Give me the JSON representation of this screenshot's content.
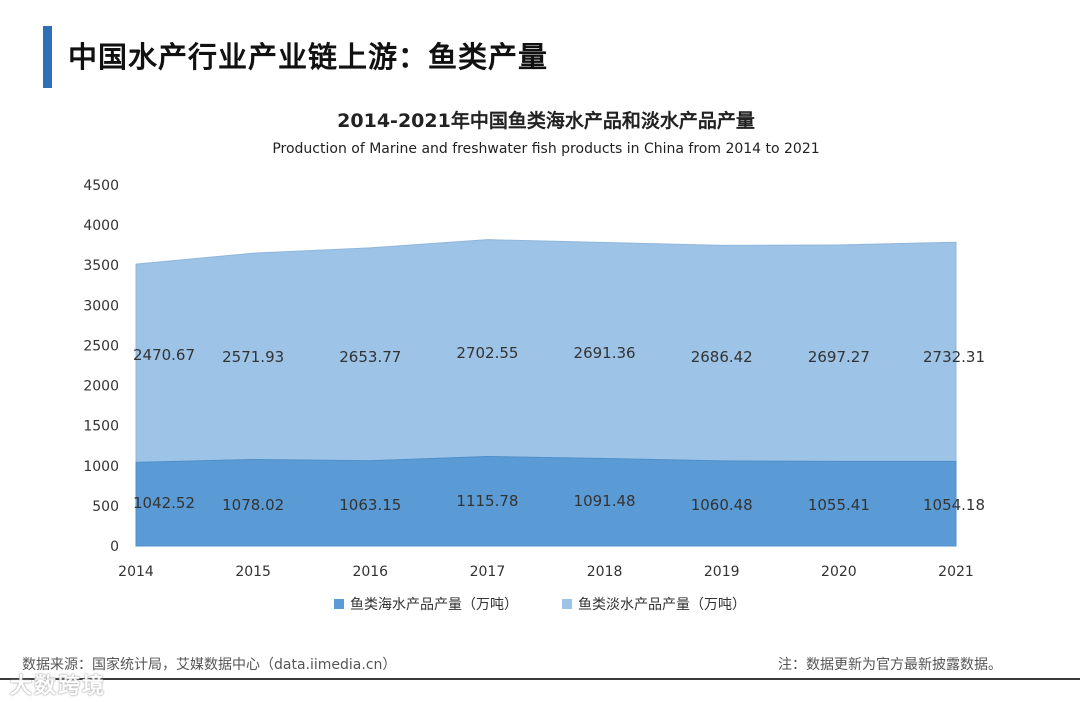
{
  "page": {
    "title": "中国水产行业产业链上游：鱼类产量",
    "source": "数据来源：国家统计局，艾媒数据中心（data.iimedia.cn）",
    "note": "注：数据更新为官方最新披露数据。",
    "watermark": "大数跨境"
  },
  "colors": {
    "accent": "#2f6fb7",
    "marine": "#5b9bd5",
    "freshwater": "#9dc3e6"
  },
  "chart_data": {
    "type": "area",
    "stacked": true,
    "title": "2014-2021年中国鱼类海水产品和淡水产品产量",
    "subtitle": "Production of Marine and freshwater fish products in China from 2014 to 2021",
    "x": [
      "2014",
      "2015",
      "2016",
      "2017",
      "2018",
      "2019",
      "2020",
      "2021"
    ],
    "yticks": [
      "0",
      "500",
      "1000",
      "1500",
      "2000",
      "2500",
      "3000",
      "3500",
      "4000",
      "4500"
    ],
    "ylim": [
      0,
      4500
    ],
    "grid": false,
    "legend_position": "bottom",
    "series": [
      {
        "name": "鱼类海水产品产量（万吨）",
        "values": [
          1042.52,
          1078.02,
          1063.15,
          1115.78,
          1091.48,
          1060.48,
          1055.41,
          1054.18
        ],
        "labels": [
          "1042.52",
          "1078.02",
          "1063.15",
          "1115.78",
          "1091.48",
          "1060.48",
          "1055.41",
          "1054.18"
        ],
        "color": "#5b9bd5"
      },
      {
        "name": "鱼类淡水产品产量（万吨）",
        "values": [
          2470.67,
          2571.93,
          2653.77,
          2702.55,
          2691.36,
          2686.42,
          2697.27,
          2732.31
        ],
        "labels": [
          "2470.67",
          "2571.93",
          "2653.77",
          "2702.55",
          "2691.36",
          "2686.42",
          "2697.27",
          "2732.31"
        ],
        "color": "#9dc3e6"
      }
    ]
  }
}
